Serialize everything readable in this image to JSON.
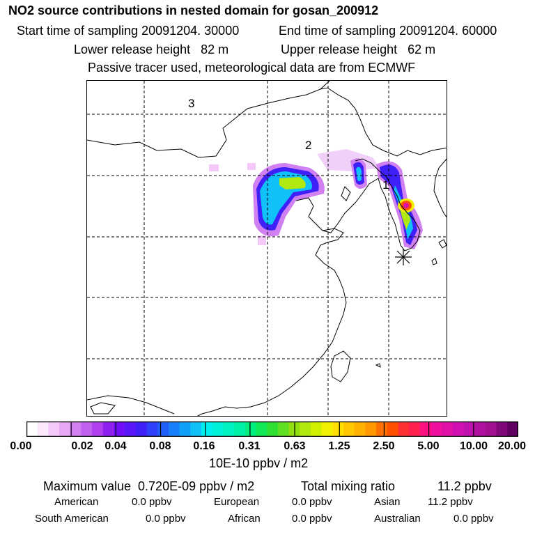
{
  "title": "NO2 source contributions in nested domain for gosan_200912",
  "header": {
    "start_label": "Start time of sampling 20091204. 30000",
    "end_label": "End time of sampling 20091204. 60000",
    "lower_label": "Lower release height   82 m",
    "upper_label": "Upper release height   62 m",
    "tracer_label": "Passive tracer used, meteorological data are from ECMWF"
  },
  "map": {
    "region_labels": [
      "3",
      "2",
      "1"
    ],
    "receptor_marker": "asterisk",
    "colors": {
      "grid": "#000000",
      "coast": "#000000",
      "border": "#000000"
    }
  },
  "colorbar": {
    "ticks": [
      "0.00",
      "0.02",
      "0.04",
      "0.08",
      "0.16",
      "0.31",
      "0.63",
      "1.25",
      "2.50",
      "5.00",
      "10.00",
      "20.00"
    ],
    "unit": "10E-10 ppbv / m2",
    "colors": [
      "#ffffff",
      "#fce8fc",
      "#f4c8f8",
      "#e8a8f4",
      "#d080f0",
      "#c060f0",
      "#b040f0",
      "#9020f0",
      "#7010f8",
      "#5818f8",
      "#4020f8",
      "#3040f8",
      "#2060f8",
      "#1880f8",
      "#10a0f8",
      "#10c0f8",
      "#00f0f0",
      "#00f0d8",
      "#00f0c0",
      "#00f0a8",
      "#00f080",
      "#10e858",
      "#30e030",
      "#60e020",
      "#90e010",
      "#b0e810",
      "#d0f000",
      "#f0f000",
      "#ffe000",
      "#ffc800",
      "#ffb000",
      "#ff9800",
      "#ff7000",
      "#ff5000",
      "#ff3030",
      "#ff2050",
      "#ff1080",
      "#f010a0",
      "#e010a8",
      "#d010b0",
      "#c010b0",
      "#b010a0",
      "#a01090",
      "#800878",
      "#600060"
    ]
  },
  "chart_data": {
    "type": "heatmap",
    "title": "NO2 source contributions in nested domain for gosan_200912",
    "color_scale_ticks": [
      0.0,
      0.02,
      0.04,
      0.08,
      0.16,
      0.31,
      0.63,
      1.25,
      2.5,
      5.0,
      10.0,
      20.0
    ],
    "color_scale_unit": "10E-10 ppbv / m2",
    "source_regions": [
      "3",
      "2",
      "1"
    ],
    "maximum_value": "0.720E-09 ppbv / m2",
    "total_mixing_ratio_ppbv": 11.2,
    "contributions_ppbv": {
      "American": 0.0,
      "European": 0.0,
      "Asian": 11.2,
      "South American": 0.0,
      "African": 0.0,
      "Australian": 0.0
    }
  },
  "stats": {
    "max_label": "Maximum value  0.720E-09 ppbv / m2",
    "total_label": "Total mixing ratio",
    "total_value": "11.2 ppbv",
    "contrib": [
      {
        "name": "American",
        "value": "0.0 ppbv"
      },
      {
        "name": "European",
        "value": "0.0 ppbv"
      },
      {
        "name": "Asian",
        "value": "11.2 ppbv"
      },
      {
        "name": "South American",
        "value": "0.0 ppbv"
      },
      {
        "name": "African",
        "value": "0.0 ppbv"
      },
      {
        "name": "Australian",
        "value": "0.0 ppbv"
      }
    ]
  }
}
